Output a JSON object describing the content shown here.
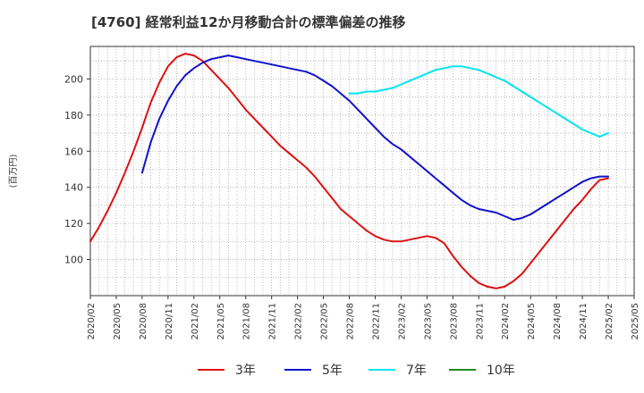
{
  "title": "[4760]  経常利益12か月移動合計の標準偏差の推移",
  "chart_data": {
    "type": "line",
    "title": "[4760]  経常利益12か月移動合計の標準偏差の推移",
    "xlabel": "",
    "ylabel": "(百万円)",
    "x_ticks": [
      "2020/02",
      "2020/05",
      "2020/08",
      "2020/11",
      "2021/02",
      "2021/05",
      "2021/08",
      "2021/11",
      "2022/02",
      "2022/05",
      "2022/08",
      "2022/11",
      "2023/02",
      "2023/05",
      "2023/08",
      "2023/11",
      "2024/02",
      "2024/05",
      "2024/08",
      "2024/11",
      "2025/02",
      "2025/05"
    ],
    "y_ticks": [
      100,
      120,
      140,
      160,
      180,
      200
    ],
    "ylim": [
      80,
      218
    ],
    "grid": true,
    "legend_position": "bottom",
    "series": [
      {
        "name": "3年",
        "color": "#dd1111",
        "x": [
          "2020/02",
          "2020/03",
          "2020/04",
          "2020/05",
          "2020/06",
          "2020/07",
          "2020/08",
          "2020/09",
          "2020/10",
          "2020/11",
          "2020/12",
          "2021/01",
          "2021/02",
          "2021/03",
          "2021/04",
          "2021/05",
          "2021/06",
          "2021/07",
          "2021/08",
          "2021/09",
          "2021/10",
          "2021/11",
          "2021/12",
          "2022/01",
          "2022/02",
          "2022/03",
          "2022/04",
          "2022/05",
          "2022/06",
          "2022/07",
          "2022/08",
          "2022/09",
          "2022/10",
          "2022/11",
          "2022/12",
          "2023/01",
          "2023/02",
          "2023/03",
          "2023/04",
          "2023/05",
          "2023/06",
          "2023/07",
          "2023/08",
          "2023/09",
          "2023/10",
          "2023/11",
          "2023/12",
          "2024/01",
          "2024/02",
          "2024/03",
          "2024/04",
          "2024/05",
          "2024/06",
          "2024/07",
          "2024/08",
          "2024/09",
          "2024/10",
          "2024/11",
          "2024/12",
          "2025/01",
          "2025/02"
        ],
        "values": [
          110,
          118,
          127,
          137,
          148,
          160,
          173,
          187,
          198,
          207,
          212,
          214,
          213,
          210,
          205,
          200,
          195,
          189,
          183,
          178,
          173,
          168,
          163,
          159,
          155,
          151,
          146,
          140,
          134,
          128,
          124,
          120,
          116,
          113,
          111,
          110,
          110,
          111,
          112,
          113,
          112,
          109,
          102,
          96,
          91,
          87,
          85,
          84,
          85,
          88,
          92,
          98,
          104,
          110,
          116,
          122,
          128,
          133,
          139,
          144,
          145
        ]
      },
      {
        "name": "5年",
        "color": "#1111cc",
        "x": [
          "2020/08",
          "2020/09",
          "2020/10",
          "2020/11",
          "2020/12",
          "2021/01",
          "2021/02",
          "2021/03",
          "2021/04",
          "2021/05",
          "2021/06",
          "2021/07",
          "2021/08",
          "2021/09",
          "2021/10",
          "2021/11",
          "2021/12",
          "2022/01",
          "2022/02",
          "2022/03",
          "2022/04",
          "2022/05",
          "2022/06",
          "2022/07",
          "2022/08",
          "2022/09",
          "2022/10",
          "2022/11",
          "2022/12",
          "2023/01",
          "2023/02",
          "2023/03",
          "2023/04",
          "2023/05",
          "2023/06",
          "2023/07",
          "2023/08",
          "2023/09",
          "2023/10",
          "2023/11",
          "2023/12",
          "2024/01",
          "2024/02",
          "2024/03",
          "2024/04",
          "2024/05",
          "2024/06",
          "2024/07",
          "2024/08",
          "2024/09",
          "2024/10",
          "2024/11",
          "2024/12",
          "2025/01",
          "2025/02"
        ],
        "values": [
          148,
          165,
          178,
          188,
          196,
          202,
          206,
          209,
          211,
          212,
          213,
          212,
          211,
          210,
          209,
          208,
          207,
          206,
          205,
          204,
          202,
          199,
          196,
          192,
          188,
          183,
          178,
          173,
          168,
          164,
          161,
          157,
          153,
          149,
          145,
          141,
          137,
          133,
          130,
          128,
          127,
          126,
          124,
          122,
          123,
          125,
          128,
          131,
          134,
          137,
          140,
          143,
          145,
          146,
          146
        ]
      },
      {
        "name": "7年",
        "color": "#00e5ee",
        "x": [
          "2022/08",
          "2022/09",
          "2022/10",
          "2022/11",
          "2022/12",
          "2023/01",
          "2023/02",
          "2023/03",
          "2023/04",
          "2023/05",
          "2023/06",
          "2023/07",
          "2023/08",
          "2023/09",
          "2023/10",
          "2023/11",
          "2023/12",
          "2024/01",
          "2024/02",
          "2024/03",
          "2024/04",
          "2024/05",
          "2024/06",
          "2024/07",
          "2024/08",
          "2024/09",
          "2024/10",
          "2024/11",
          "2024/12",
          "2025/01",
          "2025/02"
        ],
        "values": [
          192,
          192,
          193,
          193,
          194,
          195,
          197,
          199,
          201,
          203,
          205,
          206,
          207,
          207,
          206,
          205,
          203,
          201,
          199,
          196,
          193,
          190,
          187,
          184,
          181,
          178,
          175,
          172,
          170,
          168,
          170
        ]
      },
      {
        "name": "10年",
        "color": "#228b22",
        "x": [],
        "values": []
      }
    ]
  }
}
